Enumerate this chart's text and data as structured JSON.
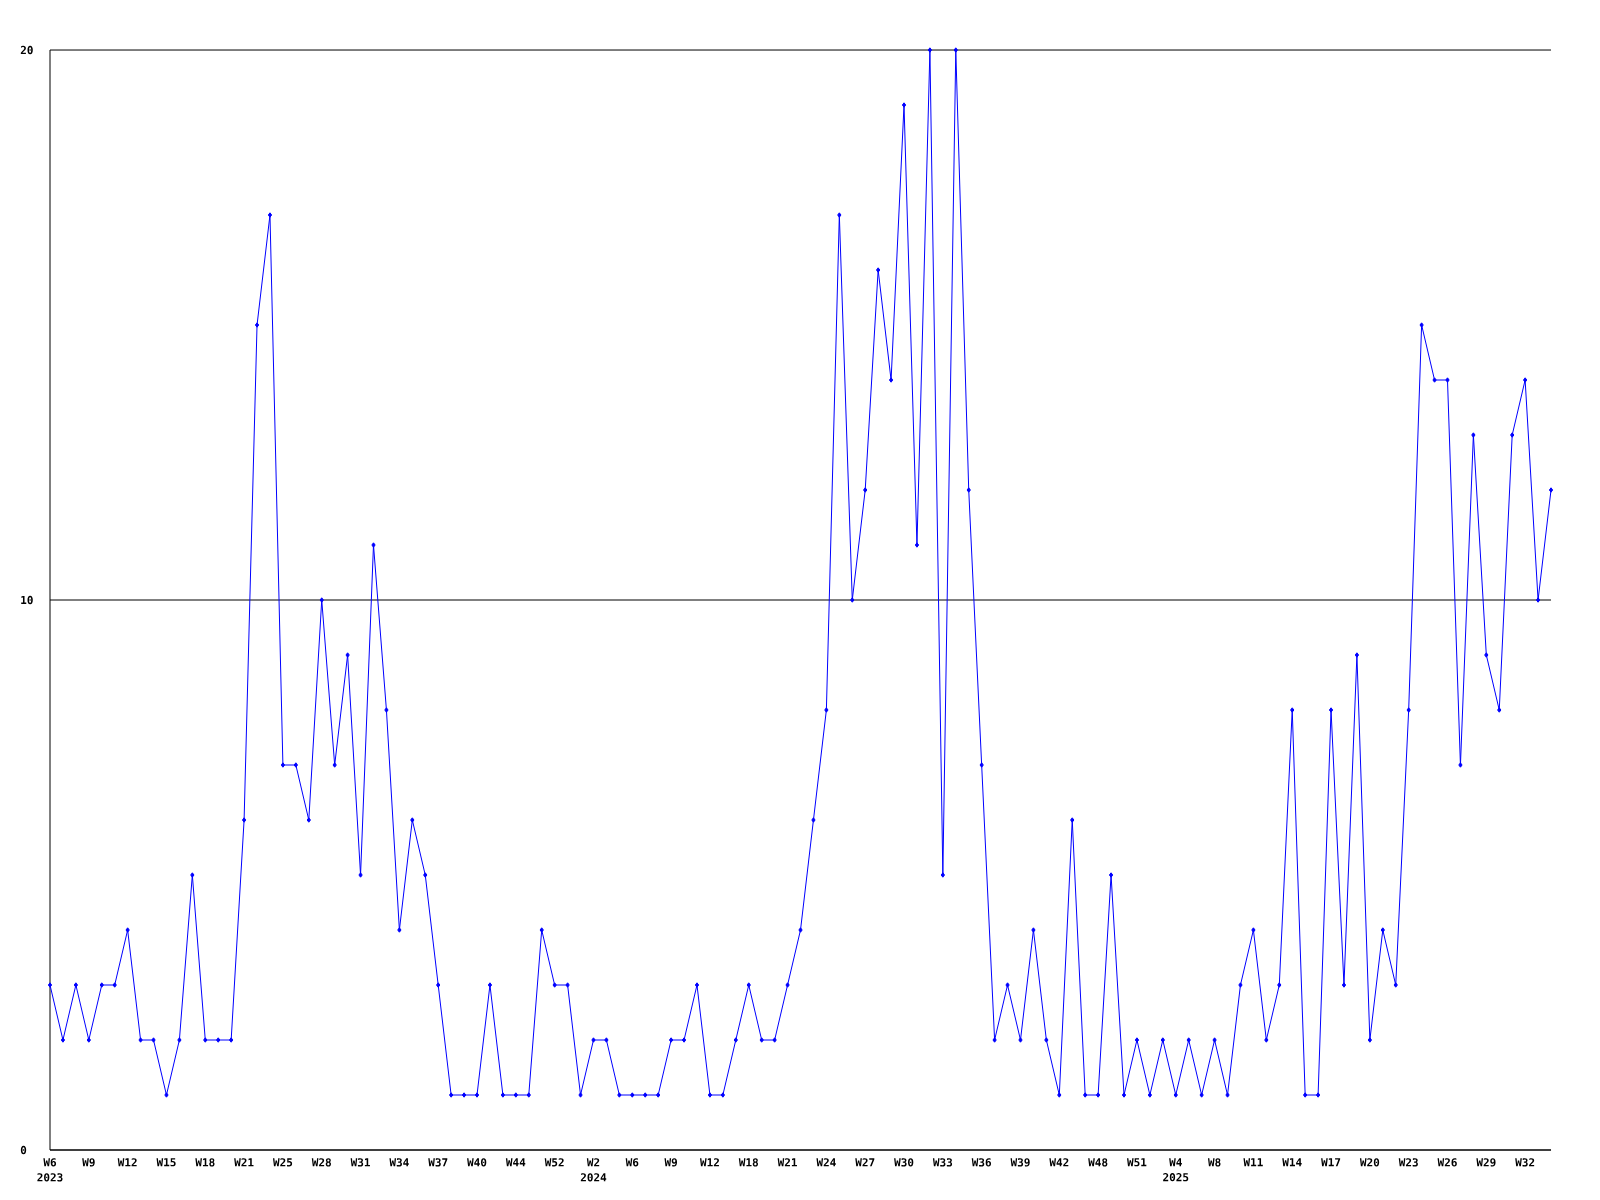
{
  "chart_data": {
    "type": "line",
    "categories": [
      "W6 2023",
      null,
      null,
      "W9",
      null,
      null,
      "W12",
      null,
      null,
      "W15",
      null,
      null,
      "W18",
      null,
      null,
      "W21",
      null,
      null,
      "W25",
      null,
      null,
      "W28",
      null,
      null,
      "W31",
      null,
      null,
      "W34",
      null,
      null,
      "W37",
      null,
      null,
      "W40",
      null,
      null,
      "W44",
      null,
      null,
      "W52",
      null,
      null,
      "W2 2024",
      null,
      null,
      "W6",
      null,
      null,
      "W9",
      null,
      null,
      "W12",
      null,
      null,
      "W18",
      null,
      null,
      "W21",
      null,
      null,
      "W24",
      null,
      null,
      "W27",
      null,
      null,
      "W30",
      null,
      null,
      "W33",
      null,
      null,
      "W36",
      null,
      null,
      "W39",
      null,
      null,
      "W42",
      null,
      null,
      "W48",
      null,
      null,
      "W51",
      null,
      null,
      "W4 2025",
      null,
      null,
      "W8",
      null,
      null,
      "W11",
      null,
      null,
      "W14",
      null,
      null,
      "W17",
      null,
      null,
      "W20",
      null,
      null,
      "W23",
      null,
      null,
      "W26",
      null,
      null,
      "W29",
      null,
      null,
      "W32",
      null,
      null
    ],
    "series": [
      {
        "color": "#0000ff",
        "values": [
          3,
          2,
          3,
          2,
          3,
          3,
          4,
          2,
          2,
          1,
          2,
          5,
          2,
          2,
          2,
          6,
          15,
          17,
          7,
          7,
          6,
          10,
          7,
          9,
          5,
          11,
          8,
          4,
          6,
          5,
          3,
          1,
          1,
          1,
          3,
          1,
          1,
          1,
          4,
          3,
          3,
          1,
          2,
          2,
          1,
          1,
          1,
          1,
          2,
          2,
          3,
          1,
          1,
          2,
          3,
          2,
          2,
          3,
          4,
          6,
          8,
          17,
          10,
          12,
          16,
          14,
          19,
          11,
          20,
          5,
          20,
          12,
          7,
          2,
          3,
          2,
          4,
          2,
          1,
          6,
          1,
          1,
          5,
          1,
          2,
          1,
          2,
          1,
          2,
          1,
          2,
          1,
          3,
          4,
          2,
          3,
          8,
          1,
          1,
          8,
          3,
          9,
          2,
          4,
          3,
          8,
          15,
          14,
          14,
          7,
          13,
          9,
          8,
          13,
          14,
          10,
          12
        ]
      }
    ],
    "ylim": [
      0,
      20
    ],
    "yticks": [
      0,
      10,
      20
    ],
    "grid": "y",
    "marker": "diamond",
    "line_style": "solid"
  }
}
